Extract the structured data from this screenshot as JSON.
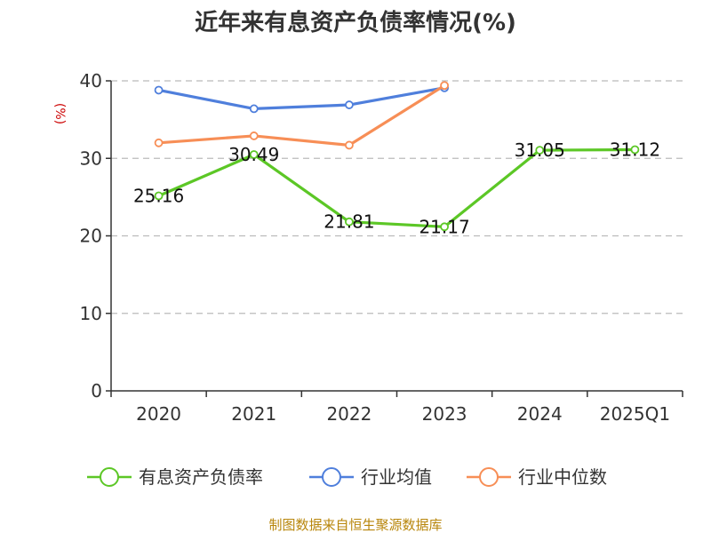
{
  "title": "近年来有息资产负债率情况(%)",
  "source": "制图数据来自恒生聚源数据库",
  "colors": {
    "debt_ratio": "#5cc726",
    "industry_avg": "#4f7fdc",
    "industry_median": "#f78e56",
    "grid": "#bbbbbb",
    "axis": "#333333"
  },
  "chart_data": {
    "type": "line",
    "title": "近年来有息资产负债率情况(%)",
    "ylabel": "(%)",
    "xlabel": "",
    "ylim": [
      0,
      40
    ],
    "yticks": [
      0,
      10,
      20,
      30,
      40
    ],
    "grid": true,
    "legend_position": "bottom",
    "categories": [
      "2020",
      "2021",
      "2022",
      "2023",
      "2024",
      "2025Q1"
    ],
    "series": [
      {
        "name": "有息资产负债率",
        "values": [
          25.16,
          30.49,
          21.81,
          21.17,
          31.05,
          31.12
        ],
        "labels": [
          "25.16",
          "30.49",
          "21.81",
          "21.17",
          "31.05",
          "31.12"
        ],
        "color": "#5cc726"
      },
      {
        "name": "行业均值",
        "values": [
          38.8,
          36.4,
          36.9,
          39.1,
          null,
          null
        ],
        "color": "#4f7fdc"
      },
      {
        "name": "行业中位数",
        "values": [
          32.0,
          32.9,
          31.7,
          39.4,
          null,
          null
        ],
        "color": "#f78e56"
      }
    ]
  }
}
